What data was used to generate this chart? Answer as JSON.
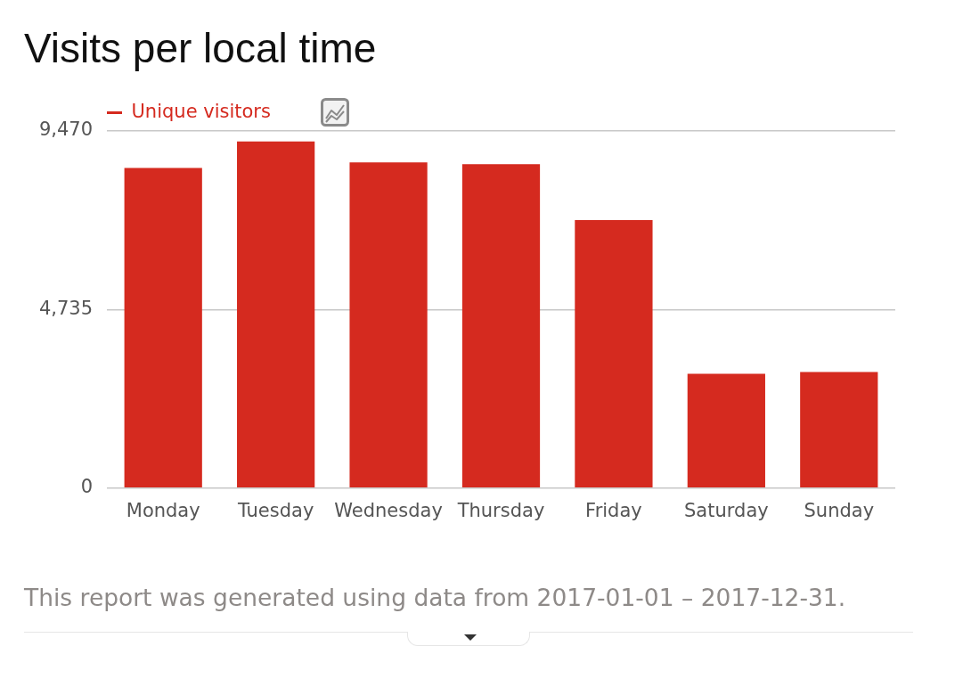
{
  "chart_data": {
    "type": "bar",
    "title": "Visits per local time",
    "categories": [
      "Monday",
      "Tuesday",
      "Wednesday",
      "Thursday",
      "Friday",
      "Saturday",
      "Sunday"
    ],
    "series": [
      {
        "name": "Unique visitors",
        "color": "#d52a1f",
        "values": [
          8490,
          9190,
          8640,
          8590,
          7110,
          3030,
          3080
        ]
      }
    ],
    "ylim": [
      0,
      9470
    ],
    "yticks": [
      0,
      {
        "value": 4735,
        "label": "4,735"
      },
      {
        "value": 9470,
        "label": "9,470"
      }
    ],
    "grid": "y",
    "legend": "top left",
    "annotations": [
      "This report was generated using data from 2017-01-01 – 2017-12-31."
    ]
  }
}
